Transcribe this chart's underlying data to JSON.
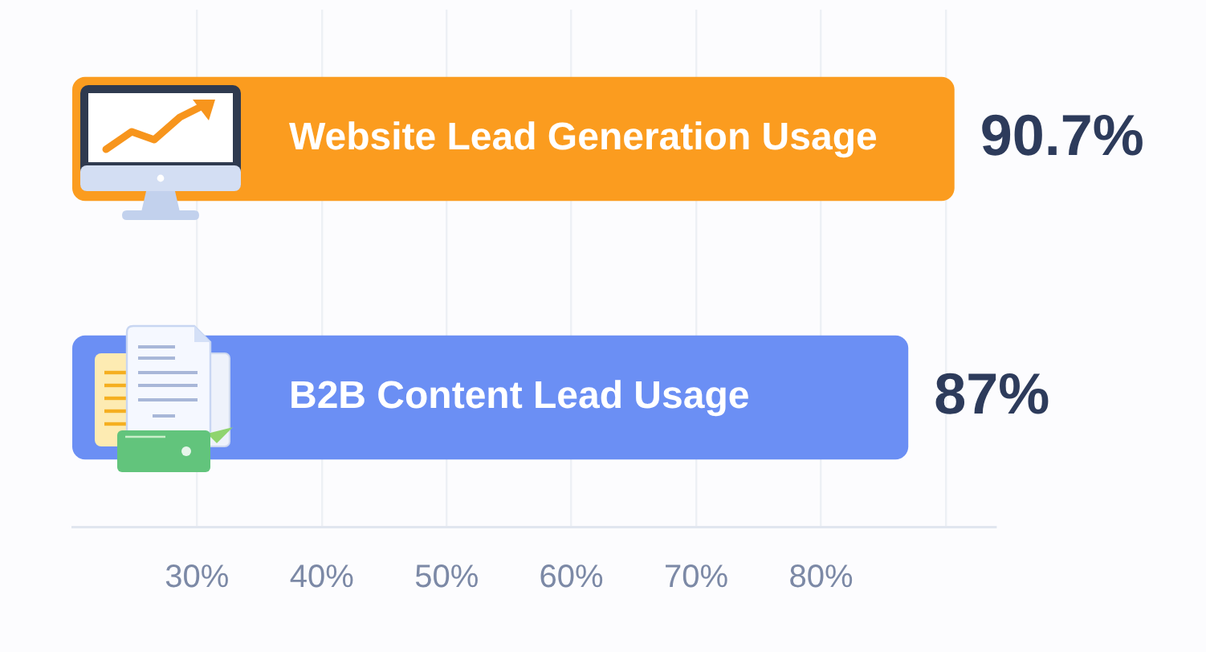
{
  "chart_data": {
    "type": "bar",
    "orientation": "horizontal",
    "categories": [
      "Website Lead Generation Usage",
      "B2B Content Lead Usage"
    ],
    "values": [
      90.7,
      87
    ],
    "colors": [
      "#fb9c1f",
      "#6b8ff4"
    ],
    "value_labels": [
      "90.7%",
      "87%"
    ],
    "xlim": [
      20,
      94
    ],
    "xticks": [
      {
        "value": 30,
        "label": "30%"
      },
      {
        "value": 40,
        "label": "40%"
      },
      {
        "value": 50,
        "label": "50%"
      },
      {
        "value": 60,
        "label": "60%"
      },
      {
        "value": 70,
        "label": "70%"
      },
      {
        "value": 80,
        "label": "80%"
      },
      {
        "value": 90,
        "label": null
      }
    ],
    "grid": "x"
  }
}
